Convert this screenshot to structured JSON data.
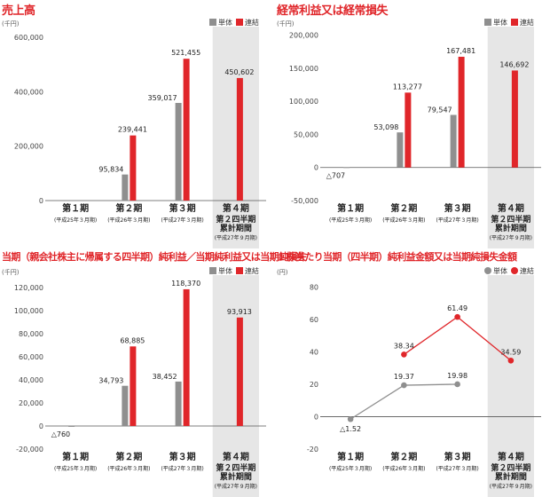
{
  "colors": {
    "standalone": "#8f8f8f",
    "consolidated": "#e0262a",
    "highlight": "#e6e6e6",
    "grid": "#bdbdbd"
  },
  "chart_data": [
    {
      "type": "bar",
      "title": "売上高",
      "unit": "(千円)",
      "legend": [
        "単体",
        "連結"
      ],
      "categories": [
        {
          "label": "第１期",
          "sub": [
            "(平成25年３月期)"
          ]
        },
        {
          "label": "第２期",
          "sub": [
            "(平成26年３月期)"
          ]
        },
        {
          "label": "第３期",
          "sub": [
            "(平成27年３月期)"
          ]
        },
        {
          "label": "第４期",
          "sub": [
            "第２四半期",
            "累計期間",
            "(平成27年９月期)"
          ]
        }
      ],
      "series": [
        {
          "name": "単体",
          "values": [
            0,
            95834,
            359017,
            null
          ],
          "labels": [
            "―",
            "95,834",
            "359,017",
            ""
          ]
        },
        {
          "name": "連結",
          "values": [
            null,
            239441,
            521455,
            450602
          ],
          "labels": [
            "",
            "239,441",
            "521,455",
            "450,602"
          ]
        }
      ],
      "yticks": [
        0,
        200000,
        400000,
        600000
      ],
      "ytick_labels": [
        "0",
        "200,000",
        "400,000",
        "600,000"
      ],
      "ylim": [
        0,
        620000
      ]
    },
    {
      "type": "bar",
      "title": "経常利益又は経常損失",
      "unit": "(千円)",
      "legend": [
        "単体",
        "連結"
      ],
      "categories": [
        {
          "label": "第１期",
          "sub": [
            "(平成25年３月期)"
          ]
        },
        {
          "label": "第２期",
          "sub": [
            "(平成26年３月期)"
          ]
        },
        {
          "label": "第３期",
          "sub": [
            "(平成27年３月期)"
          ]
        },
        {
          "label": "第４期",
          "sub": [
            "第２四半期",
            "累計期間",
            "(平成27年９月期)"
          ]
        }
      ],
      "series": [
        {
          "name": "単体",
          "values": [
            -707,
            53098,
            79547,
            null
          ],
          "labels": [
            "△707",
            "53,098",
            "79,547",
            ""
          ]
        },
        {
          "name": "連結",
          "values": [
            null,
            113277,
            167481,
            146692
          ],
          "labels": [
            "",
            "113,277",
            "167,481",
            "146,692"
          ]
        }
      ],
      "yticks": [
        -50000,
        0,
        50000,
        100000,
        150000,
        200000
      ],
      "ytick_labels": [
        "-50,000",
        "0",
        "50,000",
        "100,000",
        "150,000",
        "200,000"
      ],
      "ylim": [
        -50000,
        205000
      ]
    },
    {
      "type": "bar",
      "title": "当期（親会社株主に帰属する四半期）純利益／当期純利益又は当期純損失",
      "unit": "(千円)",
      "legend": [
        "単体",
        "連結"
      ],
      "categories": [
        {
          "label": "第１期",
          "sub": [
            "(平成25年３月期)"
          ]
        },
        {
          "label": "第２期",
          "sub": [
            "(平成26年３月期)"
          ]
        },
        {
          "label": "第３期",
          "sub": [
            "(平成27年３月期)"
          ]
        },
        {
          "label": "第４期",
          "sub": [
            "第２四半期",
            "累計期間",
            "(平成27年９月期)"
          ]
        }
      ],
      "series": [
        {
          "name": "単体",
          "values": [
            -760,
            34793,
            38452,
            null
          ],
          "labels": [
            "△760",
            "34,793",
            "38,452",
            ""
          ]
        },
        {
          "name": "連結",
          "values": [
            null,
            68885,
            118370,
            93913
          ],
          "labels": [
            "",
            "68,885",
            "118,370",
            "93,913"
          ]
        }
      ],
      "yticks": [
        -20000,
        0,
        20000,
        40000,
        60000,
        80000,
        100000,
        120000
      ],
      "ytick_labels": [
        "-20,000",
        "0",
        "20,000",
        "40,000",
        "60,000",
        "80,000",
        "100,000",
        "120,000"
      ],
      "ylim": [
        -20000,
        126000
      ]
    },
    {
      "type": "line",
      "title": "１株当たり当期（四半期）純利益金額又は当期純損失金額",
      "unit": "(円)",
      "legend": [
        "単体",
        "連結"
      ],
      "categories": [
        {
          "label": "第１期",
          "sub": [
            "(平成25年３月期)"
          ]
        },
        {
          "label": "第２期",
          "sub": [
            "(平成26年３月期)"
          ]
        },
        {
          "label": "第３期",
          "sub": [
            "(平成27年３月期)"
          ]
        },
        {
          "label": "第４期",
          "sub": [
            "第２四半期",
            "累計期間",
            "(平成27年９月期)"
          ]
        }
      ],
      "series": [
        {
          "name": "単体",
          "values": [
            -1.52,
            19.37,
            19.98,
            null
          ],
          "labels": [
            "△1.52",
            "19.37",
            "19.98",
            ""
          ]
        },
        {
          "name": "連結",
          "values": [
            null,
            38.34,
            61.49,
            34.59
          ],
          "labels": [
            "",
            "38.34",
            "61.49",
            "34.59"
          ]
        }
      ],
      "yticks": [
        -20,
        0,
        20,
        40,
        60,
        80
      ],
      "ytick_labels": [
        "-20",
        "0",
        "20",
        "40",
        "60",
        "80"
      ],
      "ylim": [
        -20,
        84
      ]
    }
  ]
}
